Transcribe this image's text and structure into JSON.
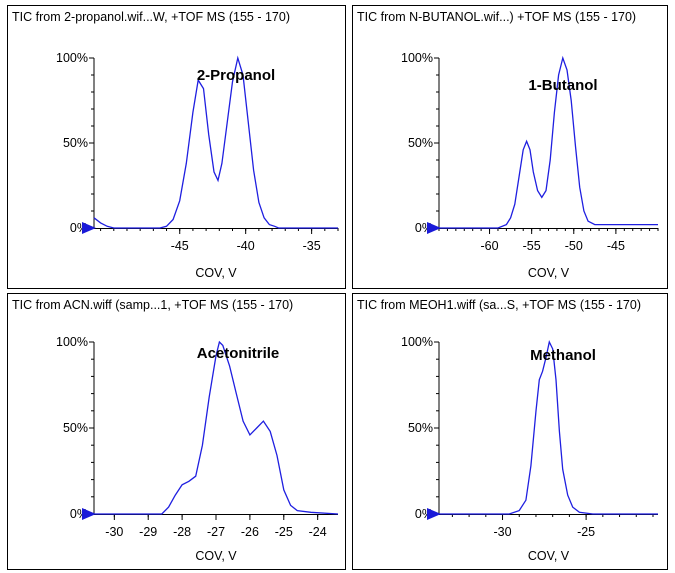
{
  "colors": {
    "trace": "#1f1fe0",
    "axis": "#000000",
    "marker": "#1a1ad8"
  },
  "chart_data": [
    {
      "type": "line",
      "header": "TIC from 2-propanol.wif...W, +TOF MS (155 - 170)",
      "annotation": "2-Propanol",
      "xlabel": "COV, V",
      "xlim": [
        -51.5,
        -33
      ],
      "ylim": [
        0,
        100
      ],
      "xticks": [
        -45,
        -40,
        -35
      ],
      "xtick_labels": [
        "-45",
        "-40",
        "-35"
      ],
      "yticks": [
        0,
        50,
        100
      ],
      "ytick_labels": [
        "0%",
        "50%",
        "100%"
      ],
      "series": [
        {
          "x": [
            -51.5,
            -51.0,
            -50.5,
            -50.0,
            -49.5,
            -48.5,
            -47.5,
            -46.5,
            -46.0,
            -45.5,
            -45.0,
            -44.5,
            -44.0,
            -43.6,
            -43.2,
            -42.8,
            -42.4,
            -42.1,
            -41.8,
            -41.4,
            -41.0,
            -40.6,
            -40.2,
            -39.8,
            -39.4,
            -39.0,
            -38.6,
            -38.2,
            -37.8,
            -37.5,
            -37.2,
            -37.0,
            -36.0,
            -35.0,
            -34.0,
            -33.0
          ],
          "y": [
            6,
            3,
            1,
            0,
            0,
            0,
            0,
            0,
            1,
            5,
            16,
            38,
            68,
            87,
            82,
            55,
            33,
            28,
            38,
            62,
            86,
            100,
            90,
            62,
            34,
            15,
            6,
            2,
            1,
            0,
            0,
            0,
            0,
            0,
            0,
            0
          ]
        }
      ]
    },
    {
      "type": "line",
      "header": "TIC from N-BUTANOL.wif...) +TOF MS (155 - 170)",
      "annotation": "1-Butanol",
      "xlabel": "COV, V",
      "xlim": [
        -66,
        -40
      ],
      "ylim": [
        0,
        100
      ],
      "xticks": [
        -60,
        -55,
        -50,
        -45
      ],
      "xtick_labels": [
        "-60",
        "-55",
        "-50",
        "-45"
      ],
      "yticks": [
        0,
        50,
        100
      ],
      "ytick_labels": [
        "0%",
        "50%",
        "100%"
      ],
      "series": [
        {
          "x": [
            -66,
            -62,
            -59,
            -58,
            -57.5,
            -57,
            -56.5,
            -56,
            -55.6,
            -55.2,
            -54.8,
            -54.3,
            -53.8,
            -53.3,
            -52.8,
            -52.3,
            -51.8,
            -51.3,
            -50.8,
            -50.3,
            -49.8,
            -49.3,
            -48.8,
            -48.3,
            -47.5,
            -46,
            -43,
            -40
          ],
          "y": [
            0,
            0,
            0,
            2,
            6,
            14,
            30,
            46,
            51,
            46,
            33,
            22,
            18,
            22,
            40,
            68,
            90,
            100,
            93,
            75,
            48,
            24,
            10,
            4,
            2,
            2,
            2,
            2
          ]
        }
      ]
    },
    {
      "type": "line",
      "header": "TIC from ACN.wiff (samp...1, +TOF MS (155 - 170)",
      "annotation": "Acetonitrile",
      "xlabel": "COV, V",
      "xlim": [
        -30.6,
        -23.4
      ],
      "ylim": [
        0,
        100
      ],
      "xticks": [
        -30,
        -29,
        -28,
        -27,
        -26,
        -25,
        -24
      ],
      "xtick_labels": [
        "-30",
        "-29",
        "-28",
        "-27",
        "-26",
        "-25",
        "-24"
      ],
      "yticks": [
        0,
        50,
        100
      ],
      "ytick_labels": [
        "0%",
        "50%",
        "100%"
      ],
      "series": [
        {
          "x": [
            -30.6,
            -29.5,
            -28.6,
            -28.4,
            -28.2,
            -28.0,
            -27.8,
            -27.6,
            -27.4,
            -27.2,
            -27.0,
            -26.9,
            -26.8,
            -26.6,
            -26.4,
            -26.2,
            -26.0,
            -25.8,
            -25.6,
            -25.4,
            -25.2,
            -25.0,
            -24.8,
            -24.6,
            -24.2,
            -23.4
          ],
          "y": [
            0,
            0,
            0,
            4,
            11,
            17,
            19,
            22,
            40,
            68,
            92,
            100,
            98,
            86,
            70,
            54,
            46,
            50,
            54,
            48,
            34,
            14,
            5,
            2,
            1,
            0
          ]
        }
      ]
    },
    {
      "type": "line",
      "header": "TIC from MEOH1.wiff (sa...S, +TOF MS (155 - 170)",
      "annotation": "Methanol",
      "xlabel": "COV, V",
      "xlim": [
        -33.8,
        -20.7
      ],
      "ylim": [
        0,
        100
      ],
      "xticks": [
        -30,
        -25
      ],
      "xtick_labels": [
        "-30",
        "-25"
      ],
      "yticks": [
        0,
        50,
        100
      ],
      "ytick_labels": [
        "0%",
        "50%",
        "100%"
      ],
      "series": [
        {
          "x": [
            -33.8,
            -31,
            -29.6,
            -29.0,
            -28.6,
            -28.3,
            -28.0,
            -27.8,
            -27.6,
            -27.4,
            -27.2,
            -27.0,
            -26.8,
            -26.6,
            -26.4,
            -26.1,
            -25.8,
            -25.4,
            -24.6,
            -23,
            -20.7
          ],
          "y": [
            0,
            0,
            0,
            2,
            8,
            28,
            60,
            78,
            83,
            91,
            100,
            96,
            78,
            48,
            26,
            11,
            4,
            1,
            0,
            0,
            0
          ]
        }
      ]
    }
  ]
}
